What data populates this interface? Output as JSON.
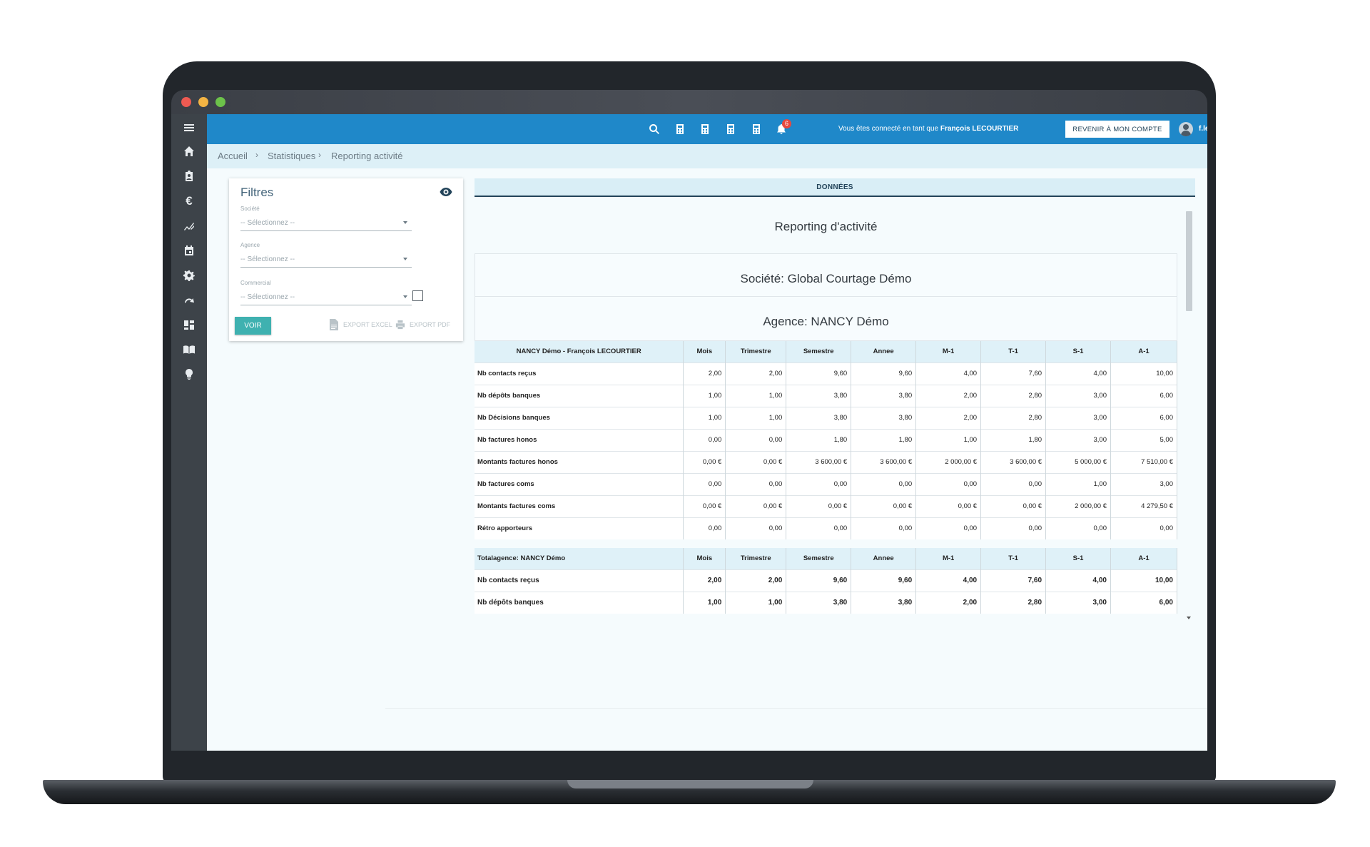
{
  "topbar": {
    "connected_prefix": "Vous êtes connecté en tant que",
    "connected_user": "François LECOURTIER",
    "return_button": "REVENIR À MON COMPTE",
    "username": "f.lecourtier",
    "notification_count": "6",
    "accent_color": "#1f88c9"
  },
  "sidebar": {
    "items": [
      "menu-icon",
      "home-icon",
      "clipboard-icon",
      "euro-icon",
      "chart-icon",
      "calendar-icon",
      "gear-icon",
      "redo-icon",
      "dashboard-icon",
      "book-icon",
      "lightbulb-icon"
    ]
  },
  "breadcrumb": [
    "Accueil",
    "Statistiques",
    "Reporting activité"
  ],
  "filters": {
    "title": "Filtres",
    "societe_label": "Société",
    "societe_placeholder": "-- Sélectionnez --",
    "agence_label": "Agence",
    "agence_placeholder": "-- Sélectionnez --",
    "commercial_label": "Commercial",
    "commercial_placeholder": "-- Sélectionnez --",
    "voir_button": "VOIR",
    "export_excel": "EXPORT EXCEL",
    "export_pdf": "EXPORT PDF"
  },
  "panel": {
    "header": "DONNÉES",
    "report_title": "Reporting d'activité",
    "societe": "Société: Global Courtage Démo",
    "agence": "Agence: NANCY Démo"
  },
  "table1": {
    "columns": [
      "NANCY Démo - François LECOURTIER",
      "Mois",
      "Trimestre",
      "Semestre",
      "Annee",
      "M-1",
      "T-1",
      "S-1",
      "A-1"
    ],
    "rows": [
      [
        "Nb contacts reçus",
        "2,00",
        "2,00",
        "9,60",
        "9,60",
        "4,00",
        "7,60",
        "4,00",
        "10,00"
      ],
      [
        "Nb dépôts banques",
        "1,00",
        "1,00",
        "3,80",
        "3,80",
        "2,00",
        "2,80",
        "3,00",
        "6,00"
      ],
      [
        "Nb Décisions banques",
        "1,00",
        "1,00",
        "3,80",
        "3,80",
        "2,00",
        "2,80",
        "3,00",
        "6,00"
      ],
      [
        "Nb factures honos",
        "0,00",
        "0,00",
        "1,80",
        "1,80",
        "1,00",
        "1,80",
        "3,00",
        "5,00"
      ],
      [
        "Montants factures honos",
        "0,00 €",
        "0,00 €",
        "3 600,00 €",
        "3 600,00 €",
        "2 000,00 €",
        "3 600,00 €",
        "5 000,00 €",
        "7 510,00 €"
      ],
      [
        "Nb factures coms",
        "0,00",
        "0,00",
        "0,00",
        "0,00",
        "0,00",
        "0,00",
        "1,00",
        "3,00"
      ],
      [
        "Montants factures coms",
        "0,00 €",
        "0,00 €",
        "0,00 €",
        "0,00 €",
        "0,00 €",
        "0,00 €",
        "2 000,00 €",
        "4 279,50 €"
      ],
      [
        "Rétro apporteurs",
        "0,00",
        "0,00",
        "0,00",
        "0,00",
        "0,00",
        "0,00",
        "0,00",
        "0,00"
      ]
    ]
  },
  "table2": {
    "columns": [
      "Totalagence: NANCY Démo",
      "Mois",
      "Trimestre",
      "Semestre",
      "Annee",
      "M-1",
      "T-1",
      "S-1",
      "A-1"
    ],
    "rows": [
      [
        "Nb contacts reçus",
        "2,00",
        "2,00",
        "9,60",
        "9,60",
        "4,00",
        "7,60",
        "4,00",
        "10,00"
      ],
      [
        "Nb dépôts banques",
        "1,00",
        "1,00",
        "3,80",
        "3,80",
        "2,00",
        "2,80",
        "3,00",
        "6,00"
      ]
    ]
  }
}
